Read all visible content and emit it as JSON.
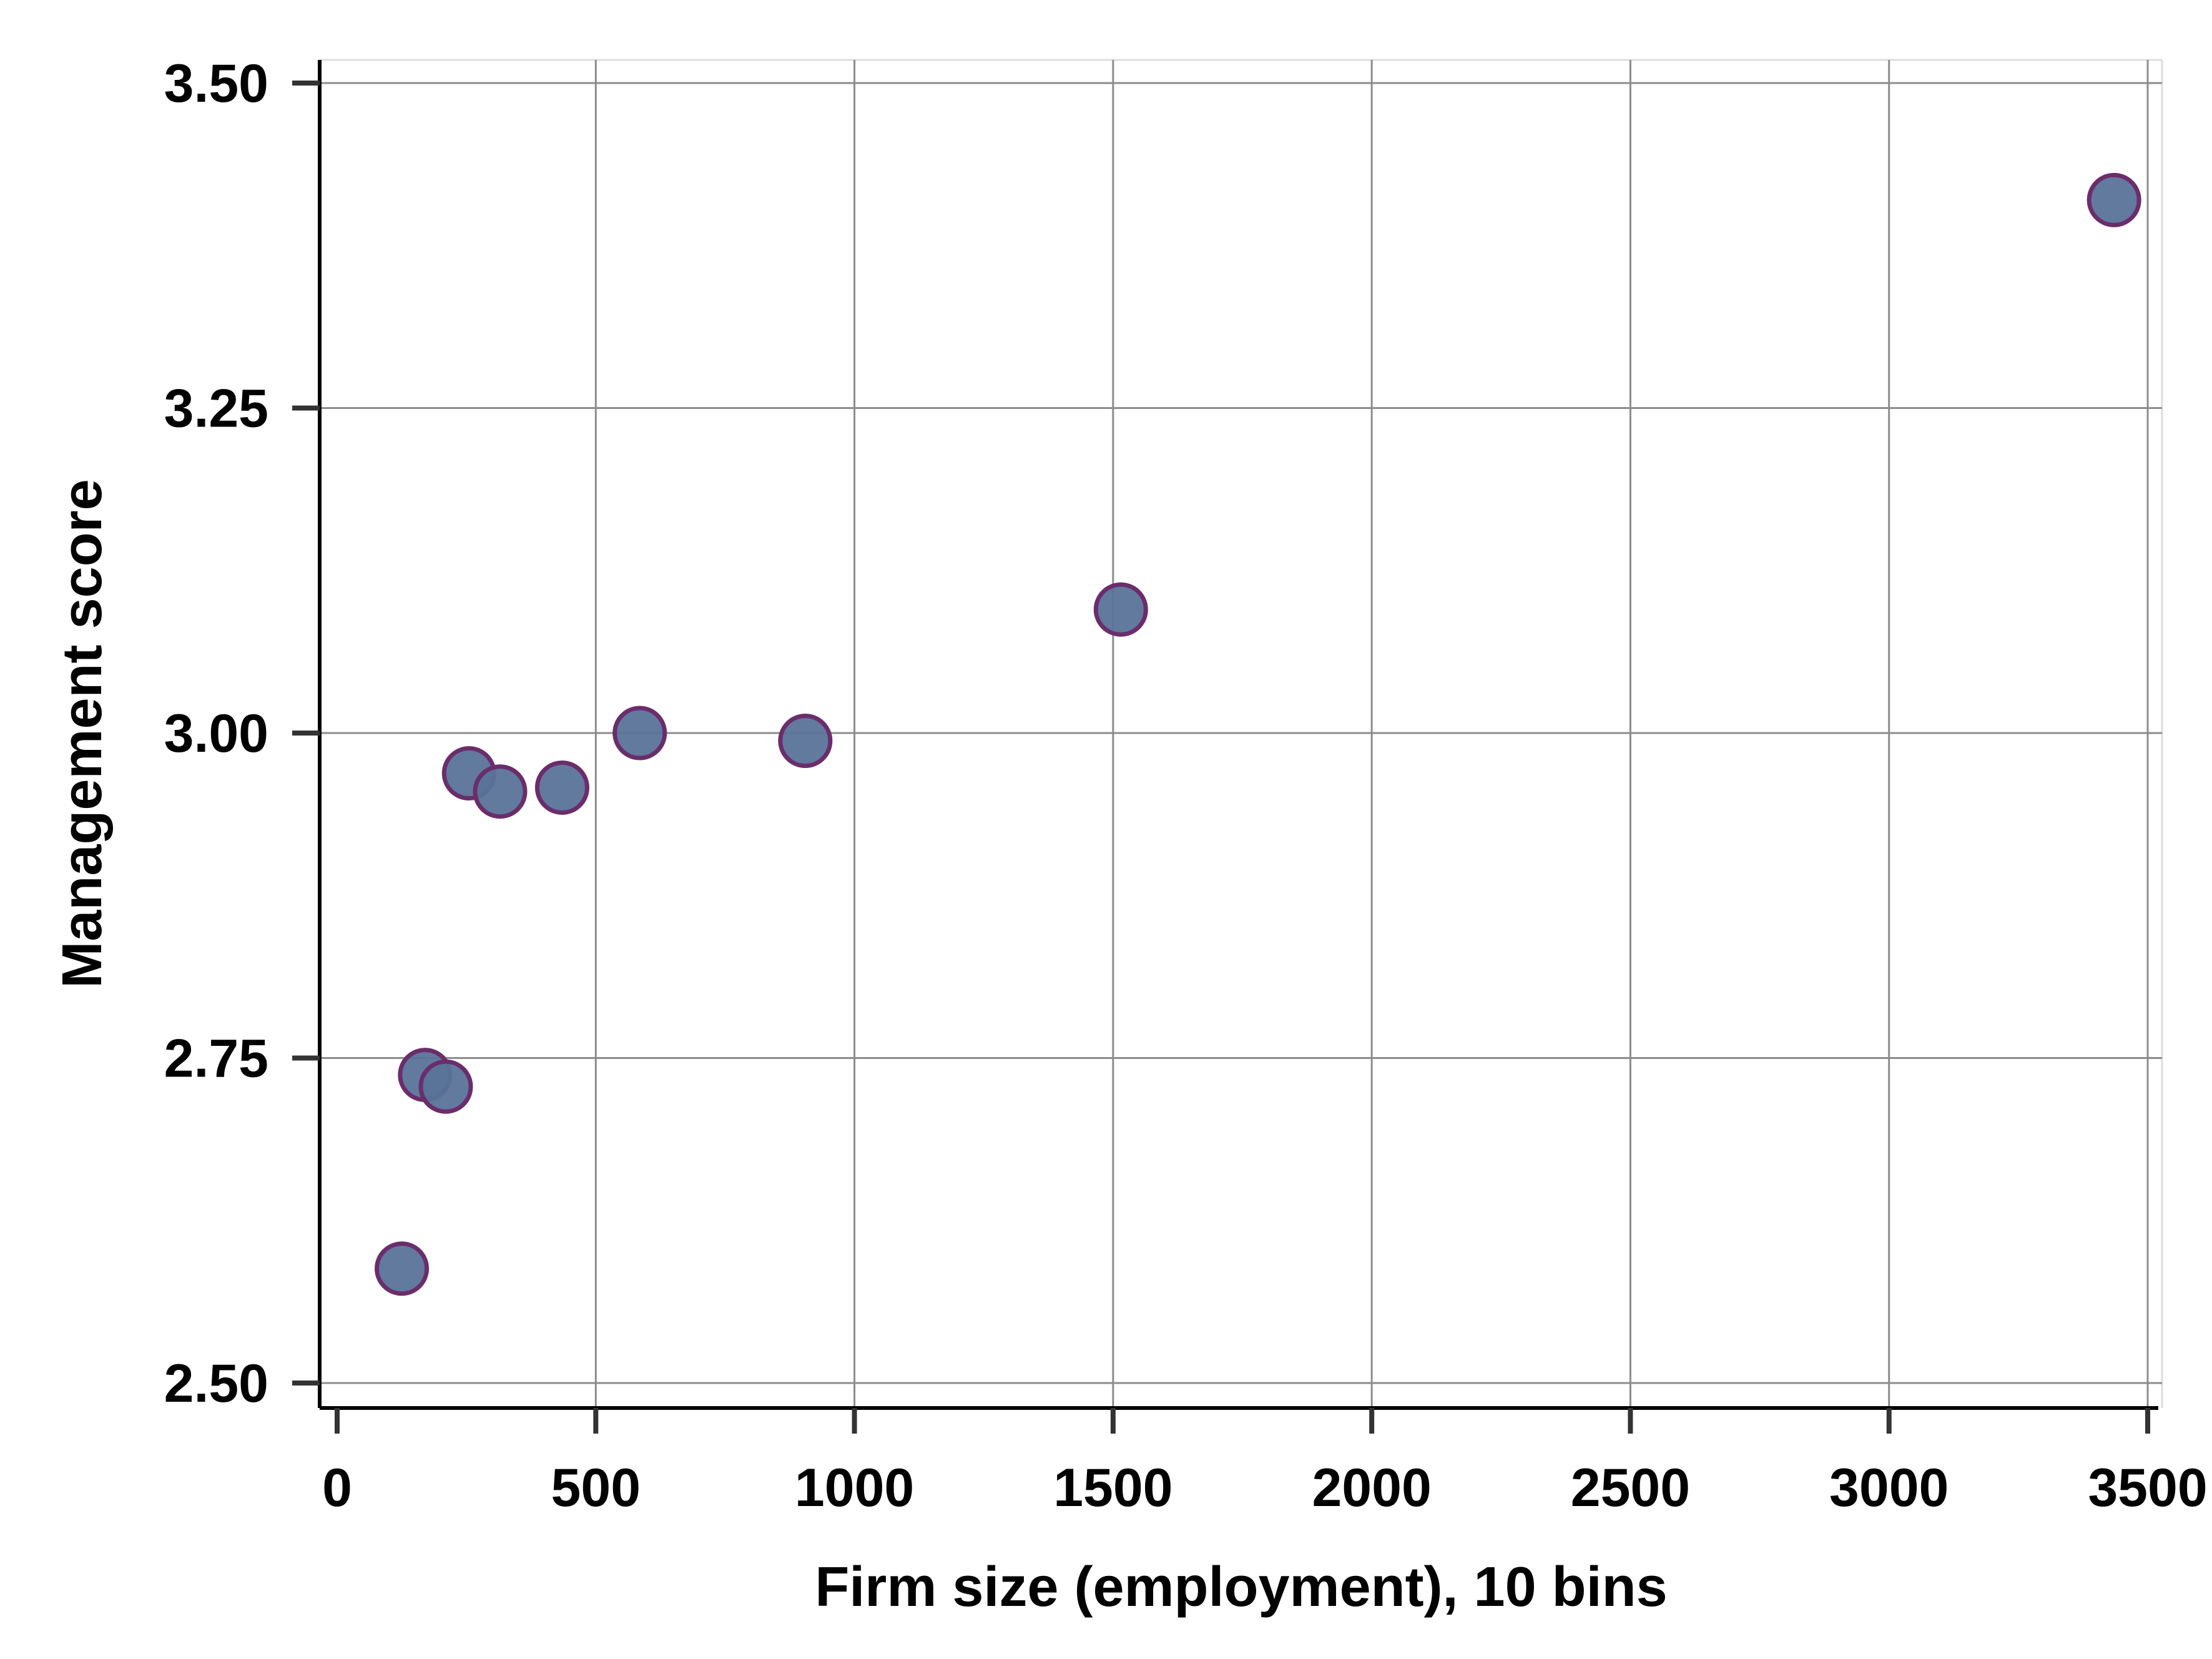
{
  "chart_data": {
    "type": "scatter",
    "title": "",
    "xlabel": "Firm size (employment), 10 bins",
    "ylabel": "Management score",
    "xlim": [
      0,
      3500
    ],
    "ylim": [
      2.5,
      3.5
    ],
    "xticks": [
      0,
      500,
      1000,
      1500,
      2000,
      2500,
      3000,
      3500
    ],
    "yticks": [
      2.5,
      2.75,
      3.0,
      3.25,
      3.5
    ],
    "xtick_labels": [
      "0",
      "500",
      "1000",
      "1500",
      "2000",
      "2500",
      "3000",
      "3500"
    ],
    "ytick_labels": [
      "2.50",
      "2.75",
      "3.00",
      "3.25",
      "3.50"
    ],
    "grid": true,
    "legend": "none",
    "marker_fill": "#5a7399",
    "marker_edge": "#6b2d6b",
    "gridline_color": "#8c8c8c",
    "x": [
      125,
      170,
      210,
      255,
      315,
      435,
      585,
      905,
      1515,
      3435
    ],
    "y": [
      2.588,
      2.737,
      2.728,
      2.969,
      2.955,
      2.958,
      3.0,
      2.994,
      3.095,
      3.41
    ]
  }
}
